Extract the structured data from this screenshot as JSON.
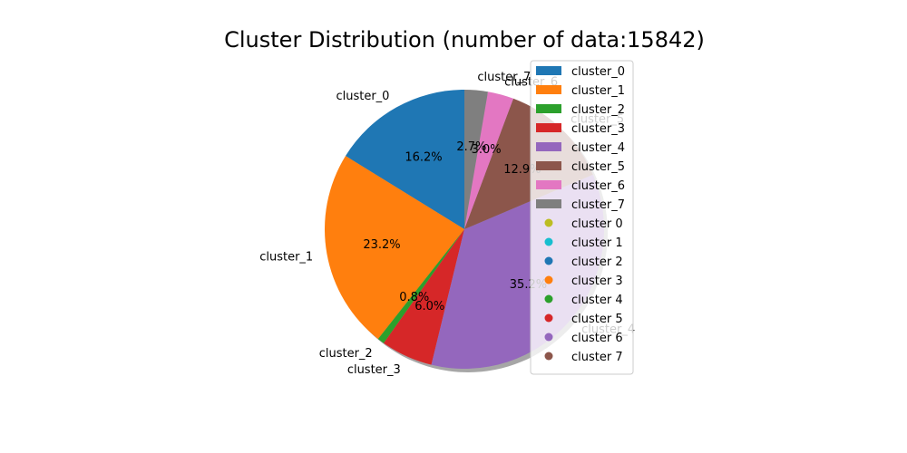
{
  "chart_data": {
    "type": "pie",
    "title": "Cluster Distribution (number of data:15842)",
    "startangle_deg": 90,
    "direction": "counterclockwise",
    "shadow": true,
    "legend_position": "right",
    "slices": [
      {
        "label": "cluster_0",
        "percent": 16.2,
        "pct_text": "16.2%",
        "color": "#1f77b4"
      },
      {
        "label": "cluster_1",
        "percent": 23.2,
        "pct_text": "23.2%",
        "color": "#ff7f0e"
      },
      {
        "label": "cluster_2",
        "percent": 0.8,
        "pct_text": "0.8%",
        "color": "#2ca02c"
      },
      {
        "label": "cluster_3",
        "percent": 6.0,
        "pct_text": "6.0%",
        "color": "#d62728"
      },
      {
        "label": "cluster_4",
        "percent": 35.2,
        "pct_text": "35.2%",
        "color": "#9467bd"
      },
      {
        "label": "cluster_5",
        "percent": 12.9,
        "pct_text": "12.9%",
        "color": "#8c564b"
      },
      {
        "label": "cluster_6",
        "percent": 3.0,
        "pct_text": "3.0%",
        "color": "#e377c2"
      },
      {
        "label": "cluster_7",
        "percent": 2.7,
        "pct_text": "2.7%",
        "color": "#7f7f7f"
      }
    ],
    "legend": {
      "patch_entries": [
        {
          "label": "cluster_0",
          "color": "#1f77b4"
        },
        {
          "label": "cluster_1",
          "color": "#ff7f0e"
        },
        {
          "label": "cluster_2",
          "color": "#2ca02c"
        },
        {
          "label": "cluster_3",
          "color": "#d62728"
        },
        {
          "label": "cluster_4",
          "color": "#9467bd"
        },
        {
          "label": "cluster_5",
          "color": "#8c564b"
        },
        {
          "label": "cluster_6",
          "color": "#e377c2"
        },
        {
          "label": "cluster_7",
          "color": "#7f7f7f"
        }
      ],
      "dot_entries": [
        {
          "label": "cluster 0",
          "color": "#bcbd22"
        },
        {
          "label": "cluster 1",
          "color": "#17becf"
        },
        {
          "label": "cluster 2",
          "color": "#1f77b4"
        },
        {
          "label": "cluster 3",
          "color": "#ff7f0e"
        },
        {
          "label": "cluster 4",
          "color": "#2ca02c"
        },
        {
          "label": "cluster 5",
          "color": "#d62728"
        },
        {
          "label": "cluster 6",
          "color": "#9467bd"
        },
        {
          "label": "cluster 7",
          "color": "#8c564b"
        }
      ]
    }
  }
}
